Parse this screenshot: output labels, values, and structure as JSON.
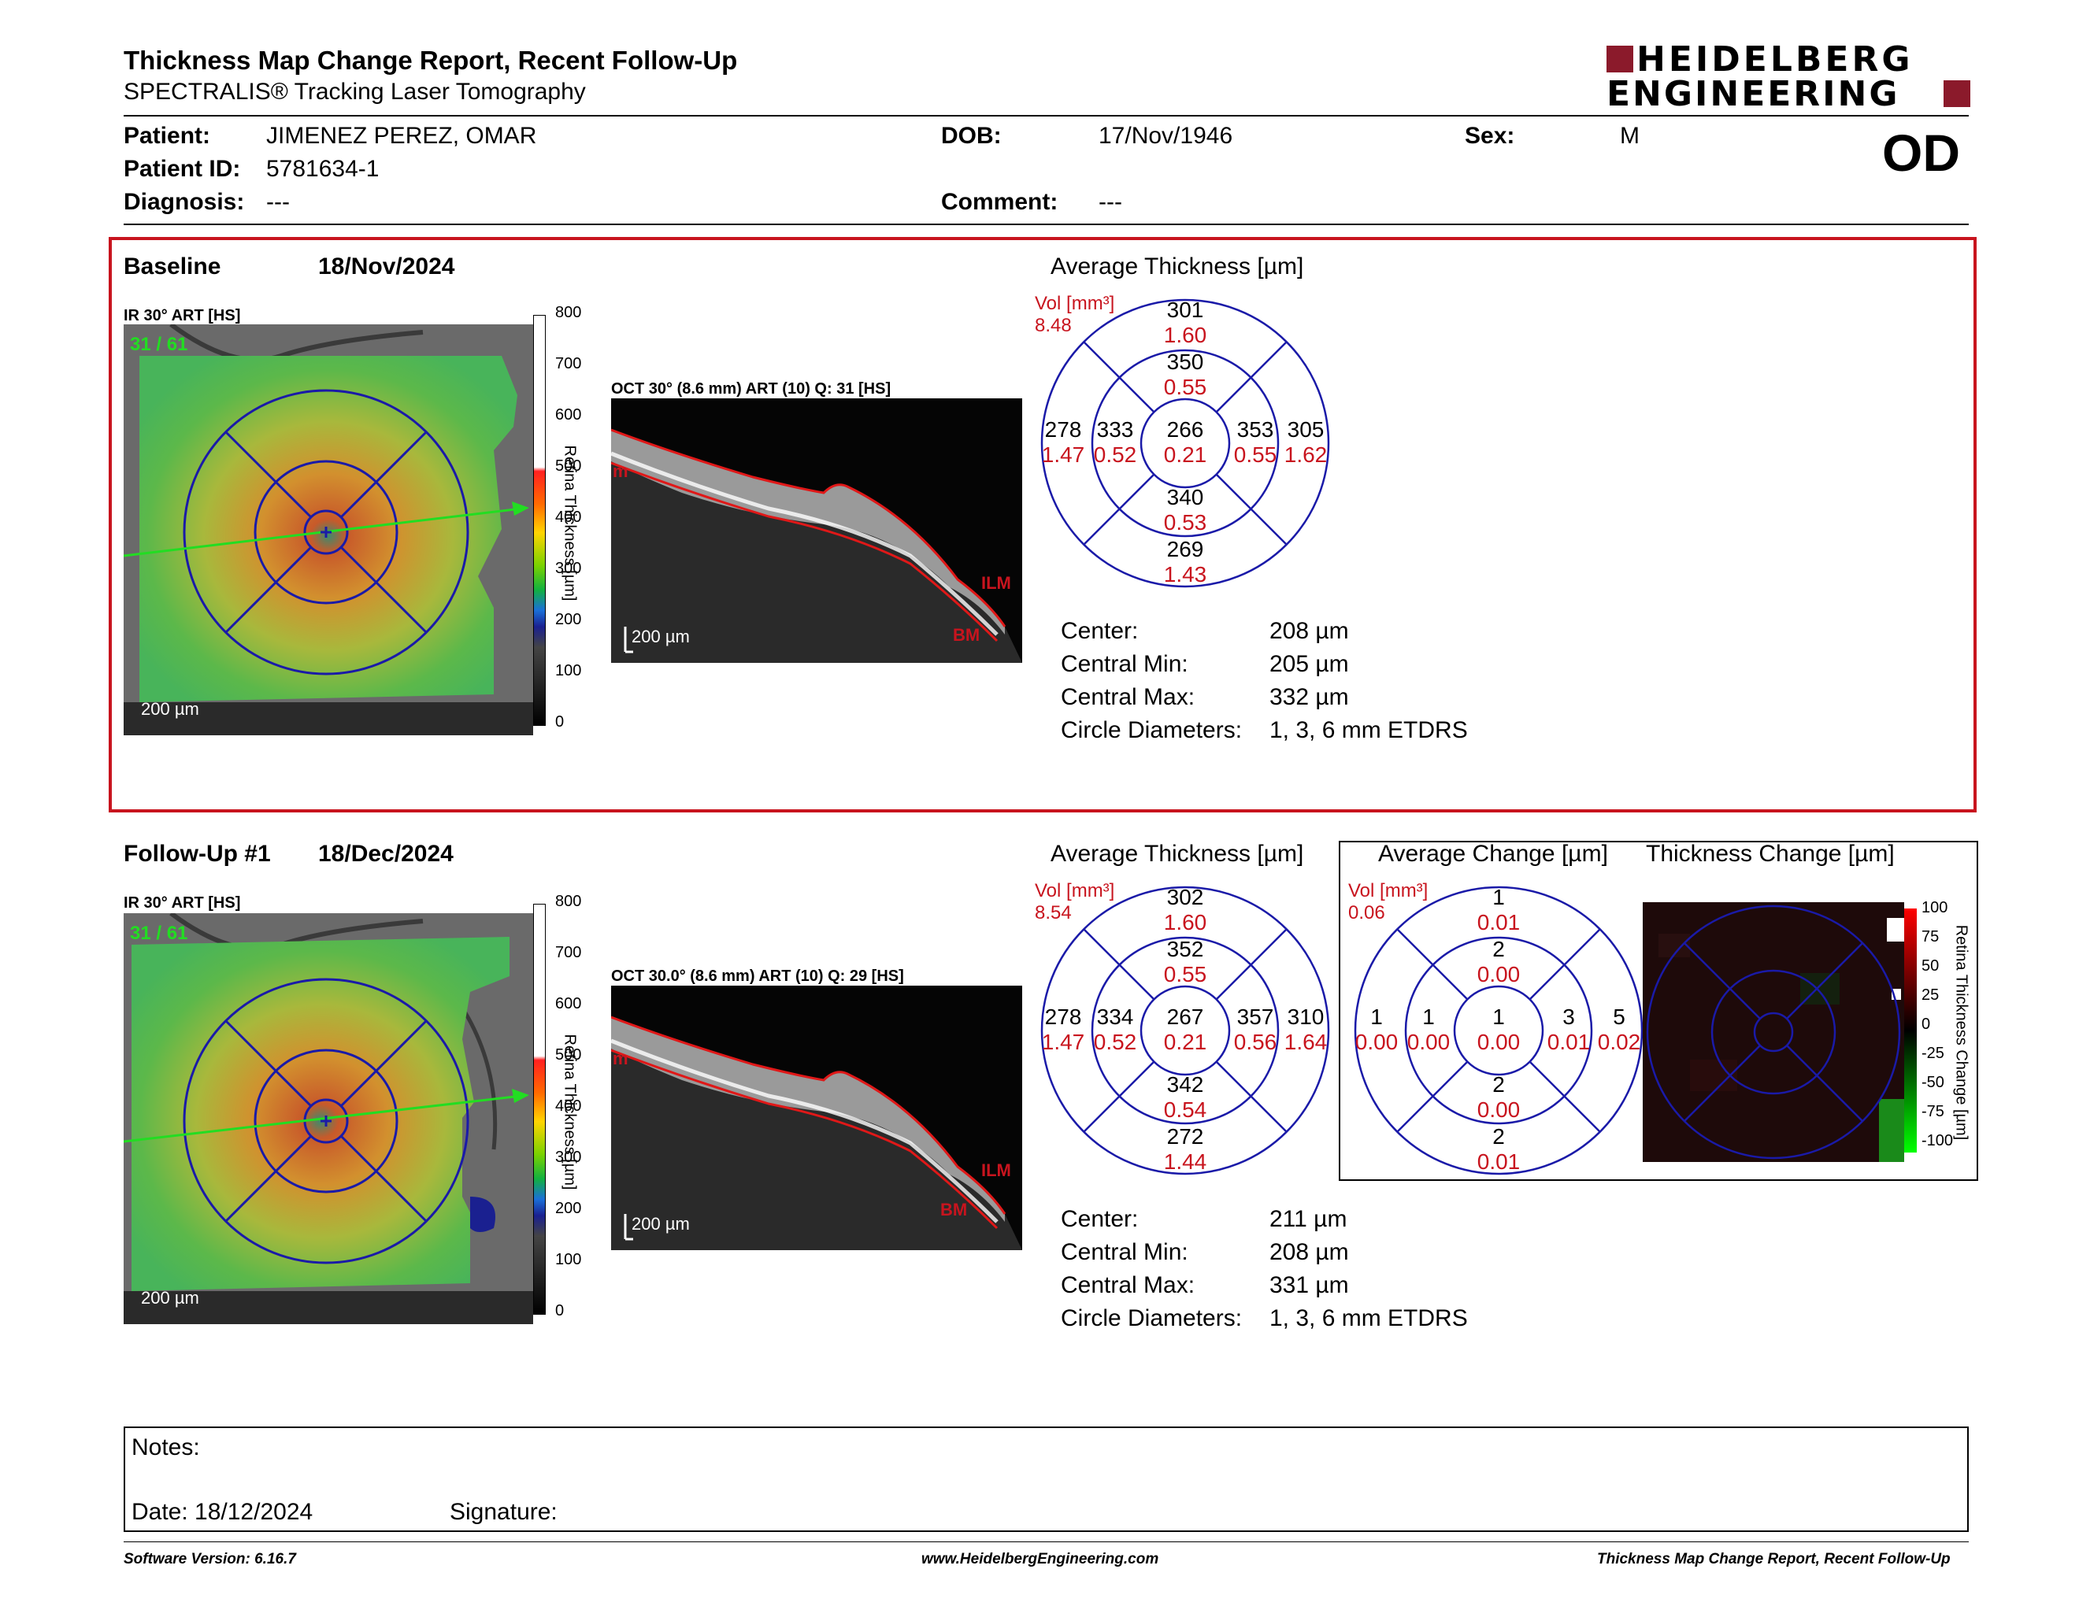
{
  "header": {
    "title": "Thickness Map Change Report, Recent Follow-Up",
    "subtitle": "SPECTRALIS® Tracking Laser Tomography",
    "logo_line1": "HEIDELBERG",
    "logo_line2": "ENGINEERING",
    "eye": "OD"
  },
  "patient": {
    "patient_label": "Patient:",
    "patient_value": "JIMENEZ PEREZ, OMAR",
    "id_label": "Patient ID:",
    "id_value": "5781634-1",
    "diagnosis_label": "Diagnosis:",
    "diagnosis_value": "---",
    "dob_label": "DOB:",
    "dob_value": "17/Nov/1946",
    "comment_label": "Comment:",
    "comment_value": "---",
    "sex_label": "Sex:",
    "sex_value": "M"
  },
  "baseline": {
    "label": "Baseline",
    "date": "18/Nov/2024",
    "ir_label": "IR 30° ART [HS]",
    "ir_count": "31 / 61",
    "scale_label": "200 µm",
    "colorbar_ticks": [
      "800",
      "700",
      "600",
      "500",
      "400",
      "300",
      "200",
      "100",
      "0"
    ],
    "colorbar_title": "Retina Thickness [µm]",
    "oct_label": "OCT 30° (8.6 mm) ART (10) Q: 31 [HS]",
    "oct_scale": "200 µm",
    "oct_ilm": "ILM",
    "oct_bm": "BM",
    "oct_left": "m",
    "avg_title": "Average Thickness [µm]",
    "vol_label": "Vol [mm³]",
    "vol_value": "8.48",
    "grid": {
      "center": [
        "266",
        "0.21"
      ],
      "inner_sup": [
        "350",
        "0.55"
      ],
      "inner_inf": [
        "340",
        "0.53"
      ],
      "inner_left": [
        "333",
        "0.52"
      ],
      "inner_right": [
        "353",
        "0.55"
      ],
      "outer_sup": [
        "301",
        "1.60"
      ],
      "outer_inf": [
        "269",
        "1.43"
      ],
      "outer_left": [
        "278",
        "1.47"
      ],
      "outer_right": [
        "305",
        "1.62"
      ]
    },
    "stats": [
      {
        "label": "Center:",
        "value": "208 µm"
      },
      {
        "label": "Central Min:",
        "value": "205 µm"
      },
      {
        "label": "Central Max:",
        "value": "332 µm"
      },
      {
        "label": "Circle Diameters:",
        "value": "1, 3, 6 mm ETDRS"
      }
    ]
  },
  "followup": {
    "label": "Follow-Up #1",
    "date": "18/Dec/2024",
    "ir_label": "IR 30° ART [HS]",
    "ir_count": "31 / 61",
    "scale_label": "200 µm",
    "colorbar_ticks": [
      "800",
      "700",
      "600",
      "500",
      "400",
      "300",
      "200",
      "100",
      "0"
    ],
    "colorbar_title": "Retina Thickness [µm]",
    "oct_label": "OCT 30.0° (8.6 mm) ART (10) Q: 29 [HS]",
    "oct_scale": "200 µm",
    "oct_ilm": "ILM",
    "oct_bm": "BM",
    "oct_left": "m",
    "avg_title": "Average Thickness [µm]",
    "vol_label": "Vol [mm³]",
    "vol_value": "8.54",
    "grid": {
      "center": [
        "267",
        "0.21"
      ],
      "inner_sup": [
        "352",
        "0.55"
      ],
      "inner_inf": [
        "342",
        "0.54"
      ],
      "inner_left": [
        "334",
        "0.52"
      ],
      "inner_right": [
        "357",
        "0.56"
      ],
      "outer_sup": [
        "302",
        "1.60"
      ],
      "outer_inf": [
        "272",
        "1.44"
      ],
      "outer_left": [
        "278",
        "1.47"
      ],
      "outer_right": [
        "310",
        "1.64"
      ]
    },
    "stats": [
      {
        "label": "Center:",
        "value": "211 µm"
      },
      {
        "label": "Central Min:",
        "value": "208 µm"
      },
      {
        "label": "Central Max:",
        "value": "331 µm"
      },
      {
        "label": "Circle Diameters:",
        "value": "1, 3, 6 mm ETDRS"
      }
    ],
    "change_title": "Average Change [µm]",
    "change_vol_label": "Vol [mm³]",
    "change_vol_value": "0.06",
    "change_grid": {
      "center": [
        "1",
        "0.00"
      ],
      "inner_sup": [
        "2",
        "0.00"
      ],
      "inner_inf": [
        "2",
        "0.00"
      ],
      "inner_left": [
        "1",
        "0.00"
      ],
      "inner_right": [
        "3",
        "0.01"
      ],
      "outer_sup": [
        "1",
        "0.01"
      ],
      "outer_inf": [
        "2",
        "0.01"
      ],
      "outer_left": [
        "1",
        "0.00"
      ],
      "outer_right": [
        "5",
        "0.02"
      ]
    },
    "thickness_change_title": "Thickness Change [µm]",
    "change_ticks": [
      "100",
      "75",
      "50",
      "25",
      "0",
      "-25",
      "-50",
      "-75",
      "-100"
    ],
    "change_bar_title": "Retina Thickness Change [µm]"
  },
  "notes": {
    "notes_label": "Notes:",
    "date_label": "Date: 18/12/2024",
    "signature_label": "Signature:"
  },
  "footer": {
    "version": "Software Version: 6.16.7",
    "website": "www.HeidelbergEngineering.com",
    "report": "Thickness Map Change Report, Recent Follow-Up"
  },
  "colors": {
    "brand": "#8b1a2b",
    "accent_red": "#c8141e",
    "etdrs_blue": "#1a1aa8",
    "scan_line": "#22dd22"
  }
}
